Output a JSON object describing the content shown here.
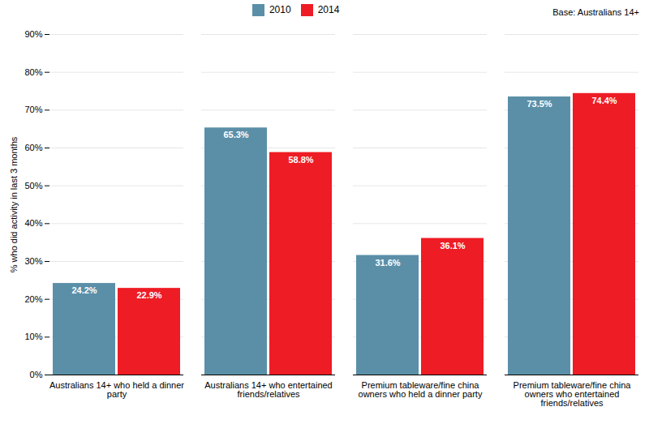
{
  "chart_data": {
    "type": "bar",
    "categories": [
      "Australians 14+ who held a dinner\nparty",
      "Australians 14+ who entertained\nfriends/relatives",
      "Premium tableware/fine china\nowners who held a dinner party",
      "Premium tableware/fine china\nowners who entertained\nfriends/relatives"
    ],
    "series": [
      {
        "name": "2010",
        "color": "#5b8fa8",
        "values": [
          24.2,
          65.3,
          31.6,
          73.5
        ],
        "value_labels": [
          "24.2%",
          "65.3%",
          "31.6%",
          "73.5%"
        ]
      },
      {
        "name": "2014",
        "color": "#ee1c24",
        "values": [
          22.9,
          58.8,
          36.1,
          74.4
        ],
        "value_labels": [
          "22.9%",
          "58.8%",
          "36.1%",
          "74.4%"
        ]
      }
    ],
    "ylabel": "% who did activity in last 3 months",
    "ylim": [
      0,
      90
    ],
    "yticks": [
      {
        "value": 0,
        "label": "0%"
      },
      {
        "value": 10,
        "label": "10%"
      },
      {
        "value": 20,
        "label": "20%"
      },
      {
        "value": 30,
        "label": "30%"
      },
      {
        "value": 40,
        "label": "40%"
      },
      {
        "value": 50,
        "label": "50%"
      },
      {
        "value": 60,
        "label": "60%"
      },
      {
        "value": 70,
        "label": "70%"
      },
      {
        "value": 80,
        "label": "80%"
      },
      {
        "value": 90,
        "label": "90%"
      }
    ],
    "grid": true,
    "legend": "upper center",
    "data_labels": true,
    "annotation": "Base: Australians 14+"
  }
}
